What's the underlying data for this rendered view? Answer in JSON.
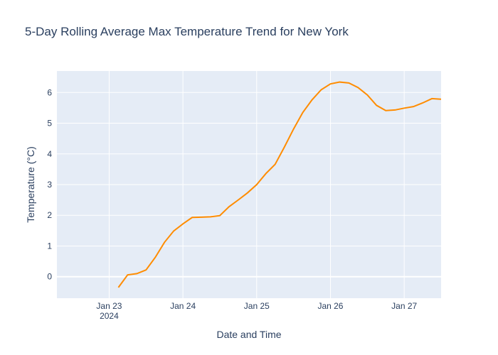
{
  "chart_data": {
    "type": "line",
    "title": "5-Day Rolling Average Max Temperature Trend for New York",
    "xlabel": "Date and Time",
    "ylabel": "Temperature (°C)",
    "x_tick_labels": [
      "Jan 23",
      "Jan 24",
      "Jan 25",
      "Jan 26",
      "Jan 27"
    ],
    "x_tick_year": "2024",
    "x_tick_dates": [
      "2024-01-23",
      "2024-01-24",
      "2024-01-25",
      "2024-01-26",
      "2024-01-27"
    ],
    "y_ticks": [
      0,
      1,
      2,
      3,
      4,
      5,
      6
    ],
    "xlim": [
      "2024-01-22 07:00",
      "2024-01-27 12:00"
    ],
    "ylim": [
      -0.7,
      6.7
    ],
    "grid": true,
    "colors": {
      "plot_bg": "#E5ECF6",
      "grid": "#ffffff",
      "line": "#FF8C00",
      "text": "#2a3f5f"
    },
    "series": [
      {
        "x": [
          "2024-01-23 03:00",
          "2024-01-23 06:00",
          "2024-01-23 09:00",
          "2024-01-23 12:00",
          "2024-01-23 15:00",
          "2024-01-23 18:00",
          "2024-01-23 21:00",
          "2024-01-24 00:00",
          "2024-01-24 03:00",
          "2024-01-24 06:00",
          "2024-01-24 09:00",
          "2024-01-24 12:00",
          "2024-01-24 15:00",
          "2024-01-24 18:00",
          "2024-01-24 21:00",
          "2024-01-25 00:00",
          "2024-01-25 03:00",
          "2024-01-25 06:00",
          "2024-01-25 09:00",
          "2024-01-25 12:00",
          "2024-01-25 15:00",
          "2024-01-25 18:00",
          "2024-01-25 21:00",
          "2024-01-26 00:00",
          "2024-01-26 03:00",
          "2024-01-26 06:00",
          "2024-01-26 09:00",
          "2024-01-26 12:00",
          "2024-01-26 15:00",
          "2024-01-26 18:00",
          "2024-01-26 21:00",
          "2024-01-27 00:00",
          "2024-01-27 03:00",
          "2024-01-27 06:00",
          "2024-01-27 09:00",
          "2024-01-27 12:00"
        ],
        "y": [
          -0.35,
          0.06,
          0.1,
          0.22,
          0.63,
          1.12,
          1.49,
          1.72,
          1.93,
          1.94,
          1.95,
          1.99,
          2.28,
          2.5,
          2.73,
          3.0,
          3.36,
          3.66,
          4.22,
          4.81,
          5.35,
          5.76,
          6.09,
          6.28,
          6.34,
          6.31,
          6.16,
          5.92,
          5.58,
          5.41,
          5.43,
          5.49,
          5.54,
          5.66,
          5.8,
          5.78
        ]
      }
    ]
  }
}
